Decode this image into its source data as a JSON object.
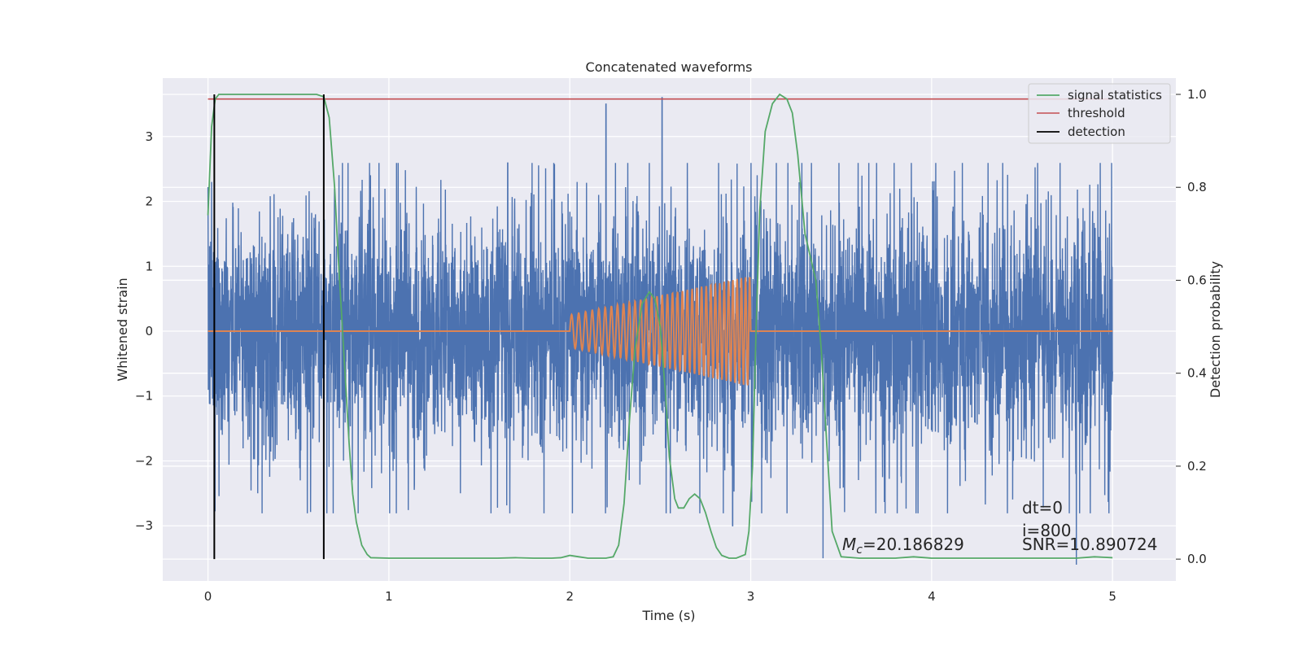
{
  "chart_data": {
    "type": "line",
    "title": "Concatenated waveforms",
    "xlabel": "Time (s)",
    "ylabel": "Whitened strain",
    "ylabel_right": "Detection probability",
    "xlim": [
      -0.25,
      5.35
    ],
    "ylim": [
      -3.85,
      3.9
    ],
    "ylim_right": [
      -0.047,
      1.035
    ],
    "x_ticks": [
      0,
      1,
      2,
      3,
      4,
      5
    ],
    "x_tick_labels": [
      "0",
      "1",
      "2",
      "3",
      "4",
      "5"
    ],
    "y_ticks": [
      -3,
      -2,
      -1,
      0,
      1,
      2,
      3
    ],
    "y_tick_labels": [
      "−3",
      "−2",
      "−1",
      "0",
      "1",
      "2",
      "3"
    ],
    "y_right_ticks": [
      0.0,
      0.2,
      0.4,
      0.6,
      0.8,
      1.0
    ],
    "y_right_tick_labels": [
      "0.0",
      "0.2",
      "0.4",
      "0.6",
      "0.8",
      "1.0"
    ],
    "grid": true,
    "legend_position": "top-right",
    "legend": [
      "signal statistics",
      "threshold",
      "detection"
    ],
    "series": [
      {
        "name": "",
        "kind": "noise",
        "axis": "left",
        "color": "#4c72b0",
        "x_range": [
          0,
          5
        ],
        "sample_count": 5000,
        "core_amplitude": 0.8,
        "peak_range": [
          -3.6,
          3.6
        ],
        "peaks": [
          [
            0.02,
            2.3
          ],
          [
            0.64,
            -2.9
          ],
          [
            2.2,
            3.5
          ],
          [
            2.51,
            3.6
          ],
          [
            2.9,
            -3.0
          ],
          [
            3.4,
            -3.5
          ],
          [
            4.8,
            -3.6
          ]
        ]
      },
      {
        "name": "",
        "kind": "chirp",
        "axis": "left",
        "color": "#dd8452",
        "baseline": 0,
        "chirp_start": 2.0,
        "chirp_end": 3.0,
        "start_amplitude": 0.25,
        "end_amplitude": 0.85,
        "start_frequency_hz": 25,
        "end_frequency_hz": 44
      },
      {
        "name": "signal statistics",
        "axis": "right",
        "color": "#55a868",
        "x": [
          0.0,
          0.02,
          0.04,
          0.06,
          0.1,
          0.2,
          0.3,
          0.4,
          0.5,
          0.6,
          0.64,
          0.67,
          0.7,
          0.72,
          0.75,
          0.78,
          0.8,
          0.82,
          0.85,
          0.88,
          0.9,
          1.0,
          1.2,
          1.4,
          1.6,
          1.7,
          1.8,
          1.9,
          1.95,
          2.0,
          2.05,
          2.1,
          2.2,
          2.24,
          2.27,
          2.3,
          2.33,
          2.36,
          2.4,
          2.44,
          2.47,
          2.5,
          2.53,
          2.55,
          2.58,
          2.6,
          2.63,
          2.66,
          2.69,
          2.72,
          2.75,
          2.78,
          2.81,
          2.84,
          2.88,
          2.92,
          2.97,
          2.99,
          3.01,
          3.03,
          3.05,
          3.08,
          3.12,
          3.16,
          3.2,
          3.23,
          3.26,
          3.3,
          3.33,
          3.36,
          3.39,
          3.42,
          3.45,
          3.5,
          3.6,
          3.7,
          3.8,
          3.9,
          4.0,
          4.2,
          4.4,
          4.6,
          4.8,
          4.9,
          4.95,
          5.0
        ],
        "y": [
          0.74,
          0.93,
          0.99,
          1.0,
          1.0,
          1.0,
          1.0,
          1.0,
          1.0,
          1.0,
          0.995,
          0.95,
          0.8,
          0.65,
          0.45,
          0.25,
          0.14,
          0.08,
          0.03,
          0.01,
          0.003,
          0.002,
          0.002,
          0.002,
          0.002,
          0.003,
          0.002,
          0.002,
          0.003,
          0.008,
          0.005,
          0.002,
          0.002,
          0.005,
          0.03,
          0.12,
          0.3,
          0.45,
          0.55,
          0.575,
          0.56,
          0.5,
          0.35,
          0.22,
          0.13,
          0.11,
          0.11,
          0.13,
          0.14,
          0.13,
          0.1,
          0.06,
          0.025,
          0.008,
          0.002,
          0.002,
          0.01,
          0.06,
          0.2,
          0.5,
          0.75,
          0.92,
          0.98,
          1.0,
          0.99,
          0.96,
          0.87,
          0.7,
          0.65,
          0.6,
          0.45,
          0.25,
          0.06,
          0.005,
          0.002,
          0.002,
          0.002,
          0.005,
          0.002,
          0.002,
          0.002,
          0.002,
          0.002,
          0.005,
          0.004,
          0.003
        ]
      },
      {
        "name": "threshold",
        "axis": "right",
        "color": "#c44e52",
        "x": [
          0,
          5
        ],
        "y": [
          0.99,
          0.99
        ]
      },
      {
        "name": "detection",
        "axis": "right",
        "color": "#000000",
        "x": [
          0.035,
          0.64
        ],
        "y_range": [
          0.0,
          1.0
        ]
      }
    ],
    "annotations": {
      "dt": "dt=0",
      "i": "i=800",
      "snr": "SNR=10.890724",
      "mc_symbol": "M",
      "mc_subscript": "c",
      "mc_value": "=20.186829"
    }
  }
}
